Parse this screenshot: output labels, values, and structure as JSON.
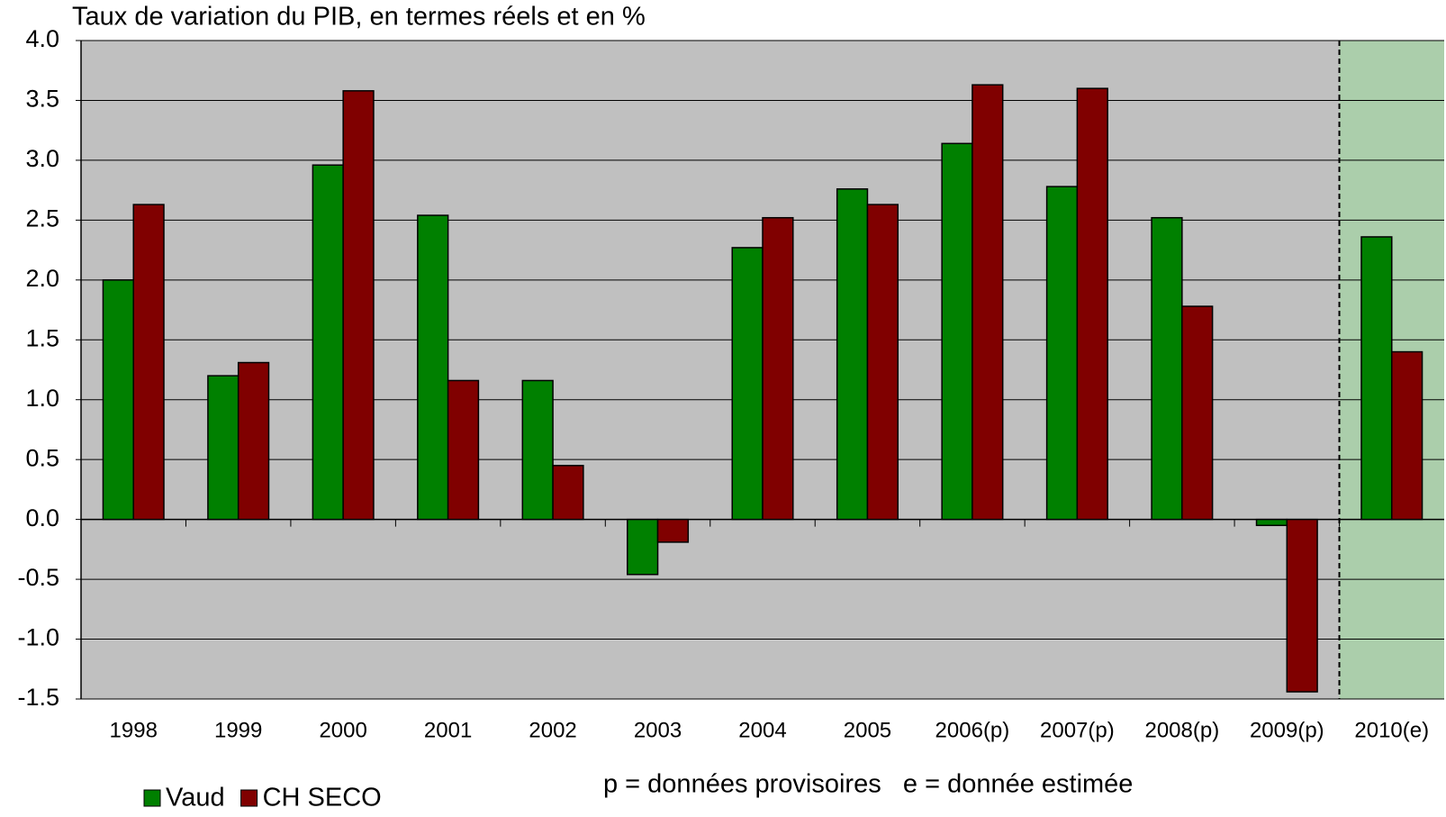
{
  "chart_data": {
    "type": "bar",
    "title": "Taux de variation du PIB, en termes réels et en %",
    "annotation": "p = données provisoires   e = donnée estimée",
    "categories": [
      "1998",
      "1999",
      "2000",
      "2001",
      "2002",
      "2003",
      "2004",
      "2005",
      "2006(p)",
      "2007(p)",
      "2008(p)",
      "2009(p)",
      "2010(e)"
    ],
    "series": [
      {
        "name": "Vaud",
        "color": "#008000",
        "values": [
          2.0,
          1.2,
          2.96,
          2.54,
          1.16,
          -0.46,
          2.27,
          2.76,
          3.14,
          2.78,
          2.52,
          -0.05,
          2.36
        ]
      },
      {
        "name": "CH SECO",
        "color": "#800000",
        "values": [
          2.63,
          1.31,
          3.58,
          1.16,
          0.45,
          -0.19,
          2.52,
          2.63,
          3.63,
          3.6,
          1.78,
          -1.44,
          1.4
        ]
      }
    ],
    "ylim": [
      -1.5,
      4.0
    ],
    "yticks": [
      {
        "value": -1.5,
        "label": "-1.5"
      },
      {
        "value": -1.0,
        "label": "-1.0"
      },
      {
        "value": -0.5,
        "label": "-0.5"
      },
      {
        "value": 0,
        "label": "0.0"
      },
      {
        "value": 0.5,
        "label": "0.5"
      },
      {
        "value": 1.0,
        "label": "1.0"
      },
      {
        "value": 1.5,
        "label": "1.5"
      },
      {
        "value": 2.0,
        "label": "2.0"
      },
      {
        "value": 2.5,
        "label": "2.5"
      },
      {
        "value": 3.0,
        "label": "3.0"
      },
      {
        "value": 3.5,
        "label": "3.5"
      },
      {
        "value": 4.0,
        "label": "4.0"
      }
    ],
    "grid": true,
    "legend": "bottom-left"
  }
}
